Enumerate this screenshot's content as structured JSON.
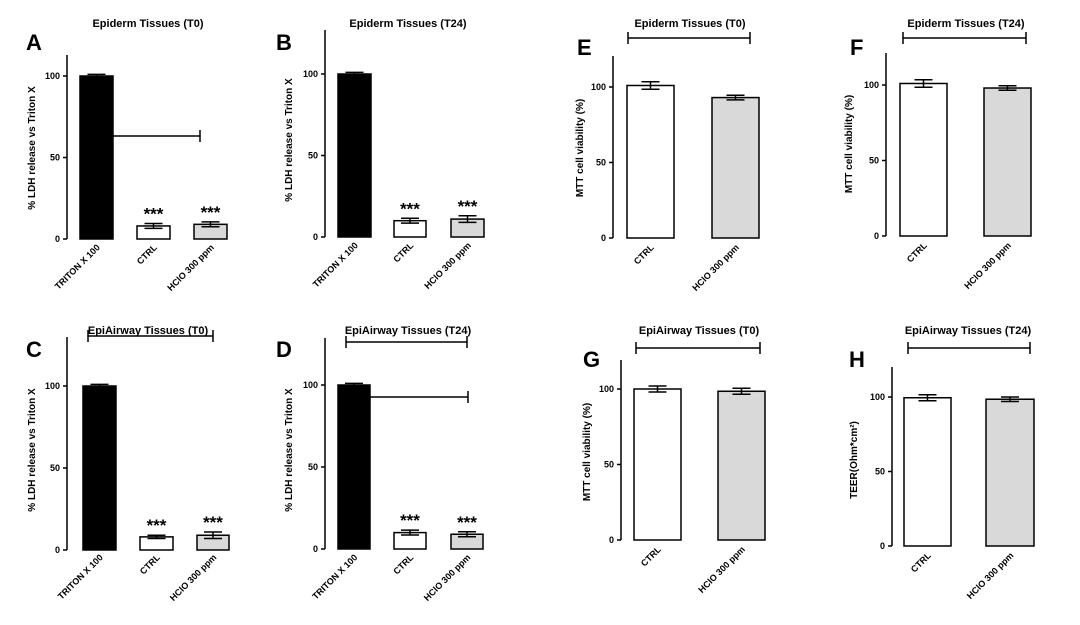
{
  "colors": {
    "black_bar": "#000000",
    "white_bar": "#ffffff",
    "grey_bar": "#d9d9d9"
  },
  "chart_data": [
    {
      "id": "A",
      "type": "bar",
      "letter": "A",
      "title": "Epiderm Tissues (T0)",
      "ylabel": "% LDH release vs Triton X",
      "ylim": [
        0,
        110
      ],
      "yticks": [
        "0",
        "50",
        "100"
      ],
      "categories": [
        "TRITON X 100",
        "CTRL",
        "HClO 300 ppm"
      ],
      "values": [
        100,
        8,
        9
      ],
      "errors": [
        1,
        1.5,
        1.5
      ],
      "fills": [
        "black",
        "white",
        "grey"
      ],
      "significance": [
        "",
        "***",
        "***"
      ]
    },
    {
      "id": "B",
      "type": "bar",
      "letter": "B",
      "title": "Epiderm Tissues (T24)",
      "ylabel": "% LDH release vs Triton X",
      "ylim": [
        0,
        110
      ],
      "yticks": [
        "0",
        "50",
        "100"
      ],
      "categories": [
        "TRITON X 100",
        "CTRL",
        "HClO 300 ppm"
      ],
      "values": [
        100,
        10,
        11
      ],
      "errors": [
        1,
        1.5,
        2
      ],
      "fills": [
        "black",
        "white",
        "grey"
      ],
      "significance": [
        "",
        "***",
        "***"
      ]
    },
    {
      "id": "C",
      "type": "bar",
      "letter": "C",
      "title": "EpiAirway Tissues (T0)",
      "ylabel": "% LDH release vs Triton X",
      "ylim": [
        0,
        110
      ],
      "yticks": [
        "0",
        "50",
        "100"
      ],
      "categories": [
        "TRITON X 100",
        "CTRL",
        "HClO 300 ppm"
      ],
      "values": [
        100,
        8,
        9
      ],
      "errors": [
        1,
        1,
        2
      ],
      "fills": [
        "black",
        "white",
        "grey"
      ],
      "significance": [
        "",
        "***",
        "***"
      ]
    },
    {
      "id": "D",
      "type": "bar",
      "letter": "D",
      "title": "EpiAirway Tissues (T24)",
      "ylabel": "% LDH release vs Triton X",
      "ylim": [
        0,
        110
      ],
      "yticks": [
        "0",
        "50",
        "100"
      ],
      "categories": [
        "TRITON X 100",
        "CTRL",
        "HClO 300 ppm"
      ],
      "values": [
        100,
        10,
        9
      ],
      "errors": [
        1,
        1.5,
        1.5
      ],
      "fills": [
        "black",
        "white",
        "grey"
      ],
      "significance": [
        "",
        "***",
        "***"
      ]
    },
    {
      "id": "E",
      "type": "bar",
      "letter": "E",
      "title": "Epiderm Tissues (T0)",
      "ylabel": "MTT cell viability (%)",
      "ylim": [
        0,
        120
      ],
      "yticks": [
        "0",
        "50",
        "100"
      ],
      "categories": [
        "CTRL",
        "HClO 300 ppm"
      ],
      "values": [
        101,
        93
      ],
      "errors": [
        2.5,
        1.5
      ],
      "fills": [
        "white",
        "grey"
      ],
      "significance": [
        "",
        ""
      ]
    },
    {
      "id": "F",
      "type": "bar",
      "letter": "F",
      "title": "Epiderm Tissues (T24)",
      "ylabel": "MTT cell viability (%)",
      "ylim": [
        0,
        120
      ],
      "yticks": [
        "0",
        "50",
        "100"
      ],
      "categories": [
        "CTRL",
        "HClO 300 ppm"
      ],
      "values": [
        101,
        98
      ],
      "errors": [
        2.5,
        1.5
      ],
      "fills": [
        "white",
        "grey"
      ],
      "significance": [
        "",
        ""
      ]
    },
    {
      "id": "G",
      "type": "bar",
      "letter": "G",
      "title": "EpiAirway Tissues (T0)",
      "ylabel": "MTT cell viability (%)",
      "ylim": [
        0,
        120
      ],
      "yticks": [
        "0",
        "50",
        "100"
      ],
      "categories": [
        "CTRL",
        "HClO 300 ppm"
      ],
      "values": [
        100,
        98.5
      ],
      "errors": [
        2,
        2
      ],
      "fills": [
        "white",
        "grey"
      ],
      "significance": [
        "",
        ""
      ]
    },
    {
      "id": "H",
      "type": "bar",
      "letter": "H",
      "title": "EpiAirway Tissues (T24)",
      "ylabel": "TEER(Ohm*cm²)",
      "ylim": [
        0,
        120
      ],
      "yticks": [
        "0",
        "50",
        "100"
      ],
      "categories": [
        "CTRL",
        "HClO 300 ppm"
      ],
      "values": [
        99.5,
        98.5
      ],
      "errors": [
        2,
        1.5
      ],
      "fills": [
        "white",
        "grey"
      ],
      "significance": [
        "",
        ""
      ]
    }
  ]
}
